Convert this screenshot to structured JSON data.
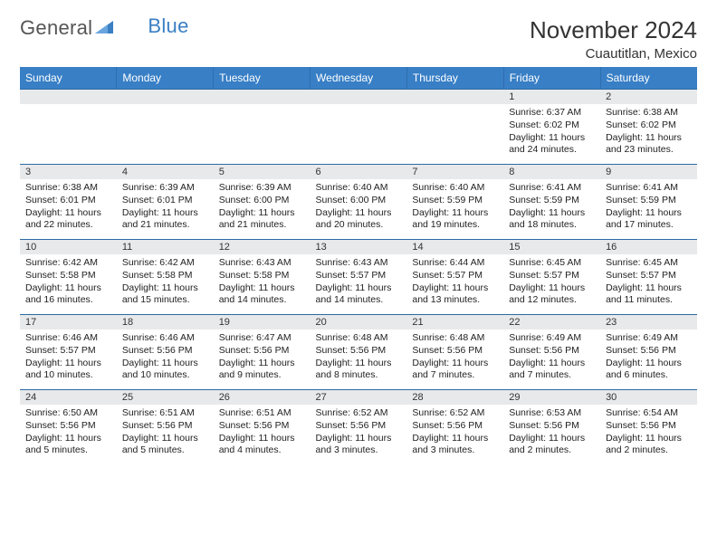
{
  "logo": {
    "word1": "General",
    "word2": "Blue"
  },
  "title": "November 2024",
  "location": "Cuautitlan, Mexico",
  "colors": {
    "header_bg": "#387fc6",
    "header_border": "#2f6fae",
    "row_border": "#2c6aa5",
    "daynum_bg": "#e8e9ea",
    "logo_accent": "#3a7fc4",
    "page_bg": "#ffffff",
    "text": "#222222"
  },
  "typography": {
    "title_fontsize": 26,
    "location_fontsize": 15,
    "header_fontsize": 12,
    "daynum_fontsize": 11,
    "body_fontsize": 10.5
  },
  "weekday_labels": [
    "Sunday",
    "Monday",
    "Tuesday",
    "Wednesday",
    "Thursday",
    "Friday",
    "Saturday"
  ],
  "weeks": [
    [
      {
        "num": "",
        "empty": true
      },
      {
        "num": "",
        "empty": true
      },
      {
        "num": "",
        "empty": true
      },
      {
        "num": "",
        "empty": true
      },
      {
        "num": "",
        "empty": true
      },
      {
        "num": "1",
        "sunrise": "Sunrise: 6:37 AM",
        "sunset": "Sunset: 6:02 PM",
        "daylight": "Daylight: 11 hours and 24 minutes."
      },
      {
        "num": "2",
        "sunrise": "Sunrise: 6:38 AM",
        "sunset": "Sunset: 6:02 PM",
        "daylight": "Daylight: 11 hours and 23 minutes."
      }
    ],
    [
      {
        "num": "3",
        "sunrise": "Sunrise: 6:38 AM",
        "sunset": "Sunset: 6:01 PM",
        "daylight": "Daylight: 11 hours and 22 minutes."
      },
      {
        "num": "4",
        "sunrise": "Sunrise: 6:39 AM",
        "sunset": "Sunset: 6:01 PM",
        "daylight": "Daylight: 11 hours and 21 minutes."
      },
      {
        "num": "5",
        "sunrise": "Sunrise: 6:39 AM",
        "sunset": "Sunset: 6:00 PM",
        "daylight": "Daylight: 11 hours and 21 minutes."
      },
      {
        "num": "6",
        "sunrise": "Sunrise: 6:40 AM",
        "sunset": "Sunset: 6:00 PM",
        "daylight": "Daylight: 11 hours and 20 minutes."
      },
      {
        "num": "7",
        "sunrise": "Sunrise: 6:40 AM",
        "sunset": "Sunset: 5:59 PM",
        "daylight": "Daylight: 11 hours and 19 minutes."
      },
      {
        "num": "8",
        "sunrise": "Sunrise: 6:41 AM",
        "sunset": "Sunset: 5:59 PM",
        "daylight": "Daylight: 11 hours and 18 minutes."
      },
      {
        "num": "9",
        "sunrise": "Sunrise: 6:41 AM",
        "sunset": "Sunset: 5:59 PM",
        "daylight": "Daylight: 11 hours and 17 minutes."
      }
    ],
    [
      {
        "num": "10",
        "sunrise": "Sunrise: 6:42 AM",
        "sunset": "Sunset: 5:58 PM",
        "daylight": "Daylight: 11 hours and 16 minutes."
      },
      {
        "num": "11",
        "sunrise": "Sunrise: 6:42 AM",
        "sunset": "Sunset: 5:58 PM",
        "daylight": "Daylight: 11 hours and 15 minutes."
      },
      {
        "num": "12",
        "sunrise": "Sunrise: 6:43 AM",
        "sunset": "Sunset: 5:58 PM",
        "daylight": "Daylight: 11 hours and 14 minutes."
      },
      {
        "num": "13",
        "sunrise": "Sunrise: 6:43 AM",
        "sunset": "Sunset: 5:57 PM",
        "daylight": "Daylight: 11 hours and 14 minutes."
      },
      {
        "num": "14",
        "sunrise": "Sunrise: 6:44 AM",
        "sunset": "Sunset: 5:57 PM",
        "daylight": "Daylight: 11 hours and 13 minutes."
      },
      {
        "num": "15",
        "sunrise": "Sunrise: 6:45 AM",
        "sunset": "Sunset: 5:57 PM",
        "daylight": "Daylight: 11 hours and 12 minutes."
      },
      {
        "num": "16",
        "sunrise": "Sunrise: 6:45 AM",
        "sunset": "Sunset: 5:57 PM",
        "daylight": "Daylight: 11 hours and 11 minutes."
      }
    ],
    [
      {
        "num": "17",
        "sunrise": "Sunrise: 6:46 AM",
        "sunset": "Sunset: 5:57 PM",
        "daylight": "Daylight: 11 hours and 10 minutes."
      },
      {
        "num": "18",
        "sunrise": "Sunrise: 6:46 AM",
        "sunset": "Sunset: 5:56 PM",
        "daylight": "Daylight: 11 hours and 10 minutes."
      },
      {
        "num": "19",
        "sunrise": "Sunrise: 6:47 AM",
        "sunset": "Sunset: 5:56 PM",
        "daylight": "Daylight: 11 hours and 9 minutes."
      },
      {
        "num": "20",
        "sunrise": "Sunrise: 6:48 AM",
        "sunset": "Sunset: 5:56 PM",
        "daylight": "Daylight: 11 hours and 8 minutes."
      },
      {
        "num": "21",
        "sunrise": "Sunrise: 6:48 AM",
        "sunset": "Sunset: 5:56 PM",
        "daylight": "Daylight: 11 hours and 7 minutes."
      },
      {
        "num": "22",
        "sunrise": "Sunrise: 6:49 AM",
        "sunset": "Sunset: 5:56 PM",
        "daylight": "Daylight: 11 hours and 7 minutes."
      },
      {
        "num": "23",
        "sunrise": "Sunrise: 6:49 AM",
        "sunset": "Sunset: 5:56 PM",
        "daylight": "Daylight: 11 hours and 6 minutes."
      }
    ],
    [
      {
        "num": "24",
        "sunrise": "Sunrise: 6:50 AM",
        "sunset": "Sunset: 5:56 PM",
        "daylight": "Daylight: 11 hours and 5 minutes."
      },
      {
        "num": "25",
        "sunrise": "Sunrise: 6:51 AM",
        "sunset": "Sunset: 5:56 PM",
        "daylight": "Daylight: 11 hours and 5 minutes."
      },
      {
        "num": "26",
        "sunrise": "Sunrise: 6:51 AM",
        "sunset": "Sunset: 5:56 PM",
        "daylight": "Daylight: 11 hours and 4 minutes."
      },
      {
        "num": "27",
        "sunrise": "Sunrise: 6:52 AM",
        "sunset": "Sunset: 5:56 PM",
        "daylight": "Daylight: 11 hours and 3 minutes."
      },
      {
        "num": "28",
        "sunrise": "Sunrise: 6:52 AM",
        "sunset": "Sunset: 5:56 PM",
        "daylight": "Daylight: 11 hours and 3 minutes."
      },
      {
        "num": "29",
        "sunrise": "Sunrise: 6:53 AM",
        "sunset": "Sunset: 5:56 PM",
        "daylight": "Daylight: 11 hours and 2 minutes."
      },
      {
        "num": "30",
        "sunrise": "Sunrise: 6:54 AM",
        "sunset": "Sunset: 5:56 PM",
        "daylight": "Daylight: 11 hours and 2 minutes."
      }
    ]
  ]
}
